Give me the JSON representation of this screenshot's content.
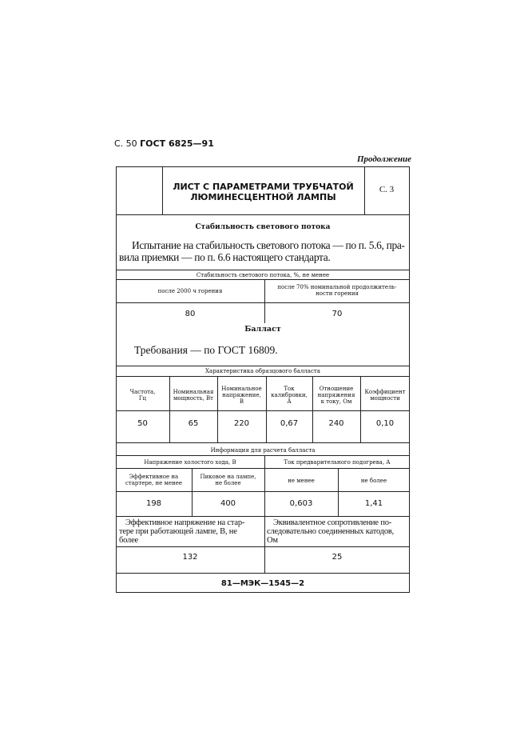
{
  "header": {
    "page_label": "С. 50",
    "standard": "ГОСТ 6825—91",
    "continuation": "Продолжение"
  },
  "sheet": {
    "title_line1": "ЛИСТ С ПАРАМЕТРАМИ ТРУБЧАТОЙ",
    "title_line2": "ЛЮМИНЕСЦЕНТНОЙ ЛАМПЫ",
    "sheet_no": "С. 3"
  },
  "stability": {
    "heading": "Стабильность светового потока",
    "text_line1": "Испытание на стабильность светового потока — по п. 5.6, пра-",
    "text_line2": "вила приемки — по п. 6.6 настоящего стандарта.",
    "table_title": "Стабильность светового потока, %, не менее",
    "col1": "после 2000 ч горения",
    "col2_line1": "после 70% номинальной продолжитель-",
    "col2_line2": "ности горения",
    "val1": "80",
    "val2": "70"
  },
  "ballast": {
    "heading": "Балласт",
    "requirements": "Требования — по ГОСТ 16809.",
    "table_title": "Характеристика образцового балласта",
    "columns": [
      [
        "Частота,",
        "Гц"
      ],
      [
        "Номинальная",
        "мощность, Вт"
      ],
      [
        "Номинальное",
        "напряжение,",
        "В"
      ],
      [
        "Ток",
        "калибровки,",
        "А"
      ],
      [
        "Отношение",
        "напряжения",
        "к току, Ом"
      ],
      [
        "Коэффициент",
        "мощности"
      ]
    ],
    "values": [
      "50",
      "65",
      "220",
      "0,67",
      "240",
      "0,10"
    ]
  },
  "calc": {
    "title": "Информация для расчета балласта",
    "left_group": "Напряжение холостого хода, В",
    "right_group": "Ток предварительного подогрева, А",
    "sub": [
      [
        "Эффективное на",
        "стартере, не менее"
      ],
      [
        "Пиковое на лампе,",
        "не более"
      ],
      [
        "не менее"
      ],
      [
        "не более"
      ]
    ],
    "values": [
      "198",
      "400",
      "0,603",
      "1,41"
    ],
    "left_big": [
      "Эффективное напряжение на стар-",
      "тере при работающей лампе, В, не",
      "более"
    ],
    "right_big": [
      "Эквивалентное сопротивление по-",
      "следовательно соединенных катодов,",
      "Ом"
    ],
    "left_val": "132",
    "right_val": "25"
  },
  "footer": {
    "code": "81—МЭК—1545—2"
  }
}
